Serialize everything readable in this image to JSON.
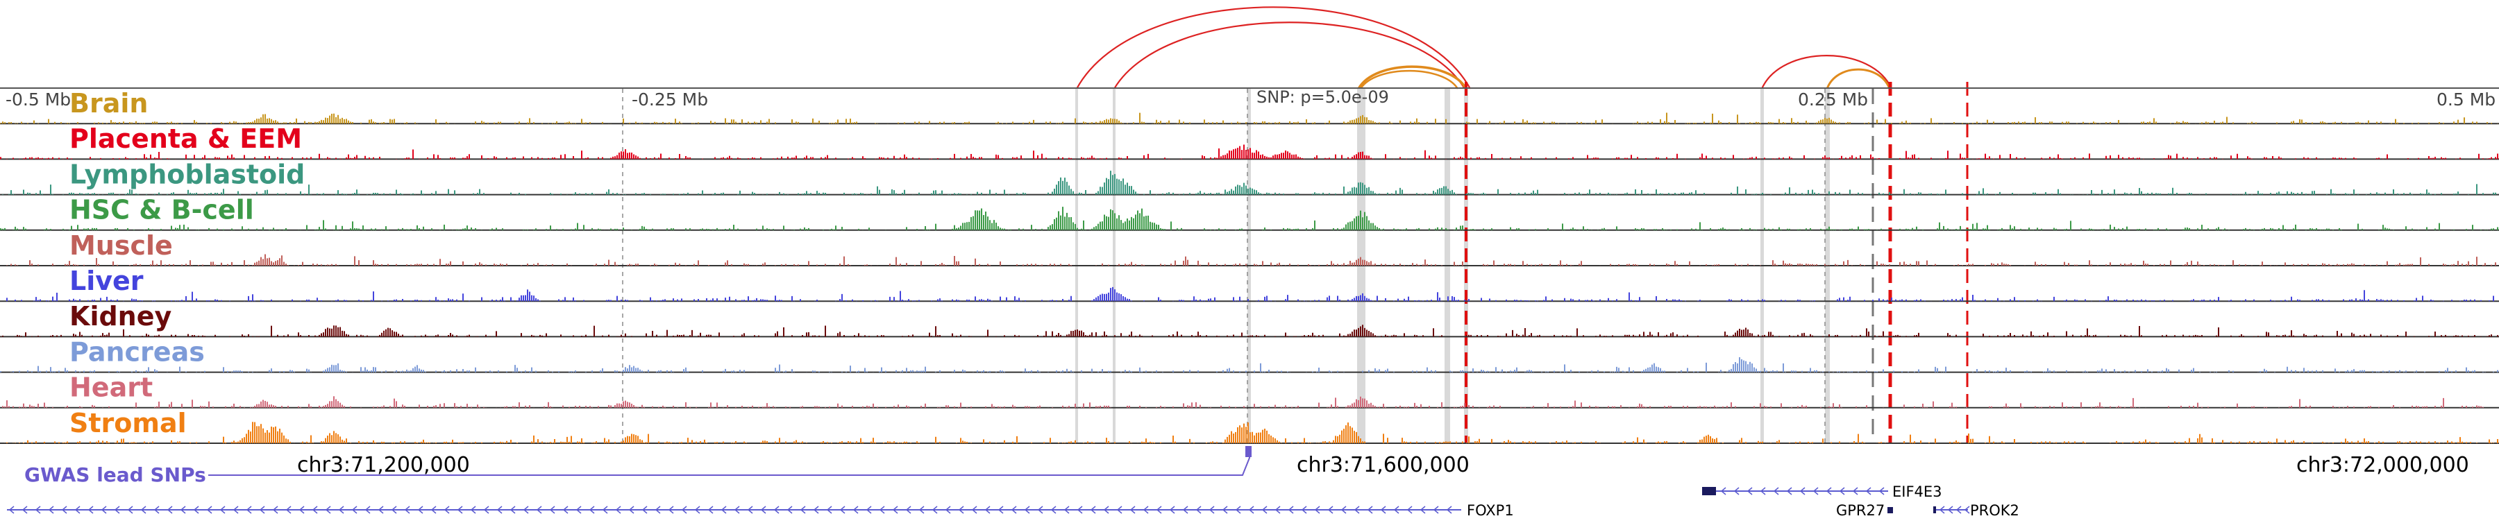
{
  "region": {
    "scale_labels": [
      "-0.5 Mb",
      "-0.25 Mb",
      "0.25 Mb",
      "0.5 Mb"
    ],
    "coordinates": [
      "chr3:71,200,000",
      "chr3:71,600,000",
      "chr3:72,000,000"
    ],
    "snp_annotation": "SNP: p=5.0e-09"
  },
  "tracks": [
    {
      "name": "Brain",
      "color": "#c8961e"
    },
    {
      "name": "Placenta & EEM",
      "color": "#e3001b"
    },
    {
      "name": "Lymphoblastoid",
      "color": "#3b9780"
    },
    {
      "name": "HSC & B-cell",
      "color": "#3c9a47"
    },
    {
      "name": "Muscle",
      "color": "#c0605a"
    },
    {
      "name": "Liver",
      "color": "#4444dd"
    },
    {
      "name": "Kidney",
      "color": "#6b0b0b"
    },
    {
      "name": "Pancreas",
      "color": "#7d9bd8"
    },
    {
      "name": "Heart",
      "color": "#d16a7a"
    },
    {
      "name": "Stromal",
      "color": "#f07f12"
    }
  ],
  "gwas": {
    "label": "GWAS lead SNPs",
    "color": "#6a5acd"
  },
  "genes": [
    {
      "name": "FOXP1"
    },
    {
      "name": "EIF4E3"
    },
    {
      "name": "GPR27"
    },
    {
      "name": "PROK2"
    }
  ],
  "colors": {
    "arc_red": "#dd2222",
    "arc_orange": "#e08a1c",
    "highlight": "#d9d9d9",
    "dash_red": "#e01010",
    "gene_line": "#5a5ad0"
  }
}
